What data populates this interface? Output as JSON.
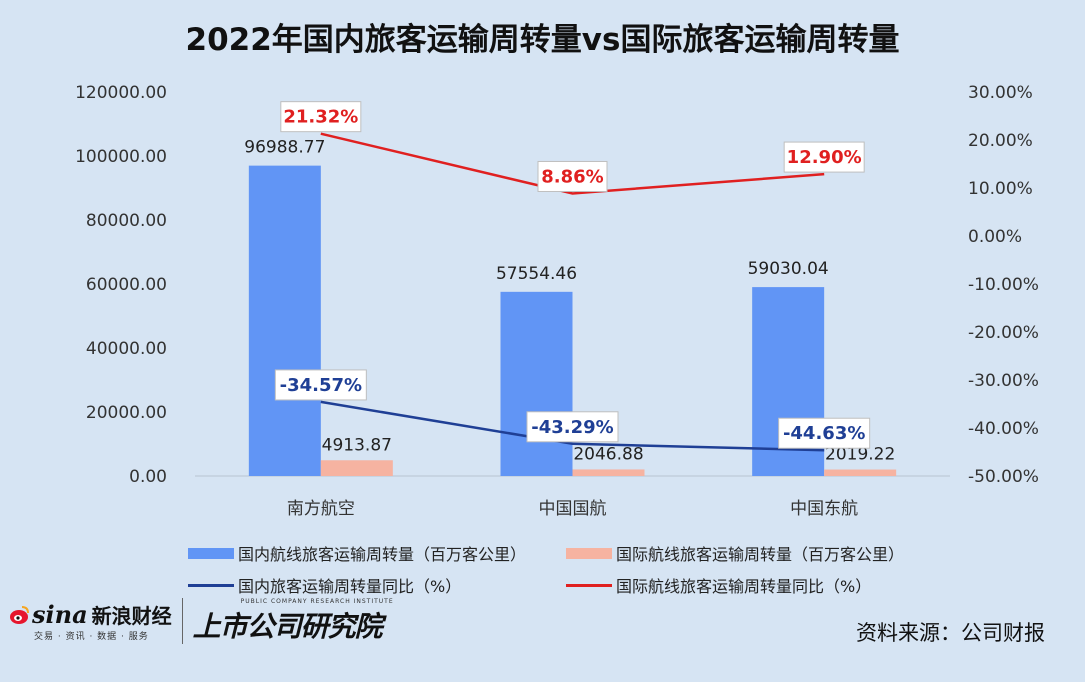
{
  "title": "2022年国内旅客运输周转量vs国际旅客运输周转量",
  "chart_data": {
    "type": "bar",
    "categories": [
      "南方航空",
      "中国国航",
      "中国东航"
    ],
    "series": [
      {
        "name": "国内航线旅客运输周转量（百万客公里）",
        "type": "bar",
        "axis": "left",
        "color": "#6195f5",
        "values": [
          96988.77,
          57554.46,
          59030.04
        ],
        "labels": [
          "96988.77",
          "57554.46",
          "59030.04"
        ]
      },
      {
        "name": "国际航线旅客运输周转量（百万客公里）",
        "type": "bar",
        "axis": "left",
        "color": "#f6b3a1",
        "values": [
          4913.87,
          2046.88,
          2019.22
        ],
        "labels": [
          "4913.87",
          "2046.88",
          "2019.22"
        ]
      },
      {
        "name": "国内旅客运输周转量同比（%）",
        "type": "line",
        "axis": "right",
        "color": "#1f3f95",
        "values": [
          -34.57,
          -43.29,
          -44.63
        ],
        "labels": [
          "-34.57%",
          "-43.29%",
          "-44.63%"
        ]
      },
      {
        "name": "国际航线旅客运输周转量同比（%）",
        "type": "line",
        "axis": "right",
        "color": "#e02020",
        "values": [
          21.32,
          8.86,
          12.9
        ],
        "labels": [
          "21.32%",
          "8.86%",
          "12.90%"
        ]
      }
    ],
    "y_left": {
      "ylim": [
        0,
        120000
      ],
      "ticks": [
        "0.00",
        "20000.00",
        "40000.00",
        "60000.00",
        "80000.00",
        "100000.00",
        "120000.00"
      ]
    },
    "y_right": {
      "ylim": [
        -50,
        30
      ],
      "ticks": [
        "-50.00%",
        "-40.00%",
        "-30.00%",
        "-20.00%",
        "-10.00%",
        "0.00%",
        "10.00%",
        "20.00%",
        "30.00%"
      ]
    },
    "grid": false,
    "legend": "bottom"
  },
  "source": "资料来源：公司财报",
  "logos": {
    "sina_word": "sina",
    "sina_cn": "新浪财经",
    "sina_sub": "交易 · 资讯 · 数据 · 服务",
    "ssi_en": "PUBLIC COMPANY RESEARCH INSTITUTE",
    "ssi_cn": "上市公司研究院"
  }
}
